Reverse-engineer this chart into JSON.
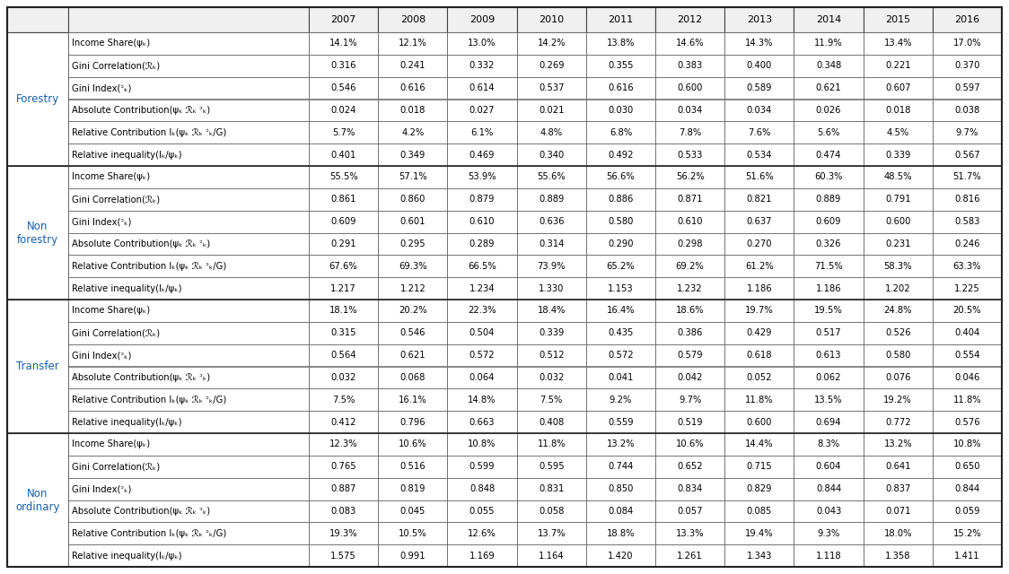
{
  "years": [
    "2007",
    "2008",
    "2009",
    "2010",
    "2011",
    "2012",
    "2013",
    "2014",
    "2015",
    "2016"
  ],
  "sections": [
    {
      "label": "Forestry",
      "rows": [
        {
          "name": "Income Share(ψₖ)",
          "values": [
            "14.1%",
            "12.1%",
            "13.0%",
            "14.2%",
            "13.8%",
            "14.6%",
            "14.3%",
            "11.9%",
            "13.4%",
            "17.0%"
          ]
        },
        {
          "name": "Gini Correlation(ℛₖ)",
          "values": [
            "0.316",
            "0.241",
            "0.332",
            "0.269",
            "0.355",
            "0.383",
            "0.400",
            "0.348",
            "0.221",
            "0.370"
          ]
        },
        {
          "name": "Gini Index(ᵓₖ)",
          "values": [
            "0.546",
            "0.616",
            "0.614",
            "0.537",
            "0.616",
            "0.600",
            "0.589",
            "0.621",
            "0.607",
            "0.597"
          ]
        },
        {
          "name": "Absolute Contribution(ψₖ ℛₖ ᵓₖ)",
          "values": [
            "0.024",
            "0.018",
            "0.027",
            "0.021",
            "0.030",
            "0.034",
            "0.034",
            "0.026",
            "0.018",
            "0.038"
          ]
        },
        {
          "name": "Relative Contribution Iₖ(ψₖ ℛₖ ᵓₖ/G)",
          "values": [
            "5.7%",
            "4.2%",
            "6.1%",
            "4.8%",
            "6.8%",
            "7.8%",
            "7.6%",
            "5.6%",
            "4.5%",
            "9.7%"
          ]
        },
        {
          "name": "Relative inequality(Iₖ/ψₖ)",
          "values": [
            "0.401",
            "0.349",
            "0.469",
            "0.340",
            "0.492",
            "0.533",
            "0.534",
            "0.474",
            "0.339",
            "0.567"
          ]
        }
      ]
    },
    {
      "label": "Non\nforestry",
      "rows": [
        {
          "name": "Income Share(ψₖ)",
          "values": [
            "55.5%",
            "57.1%",
            "53.9%",
            "55.6%",
            "56.6%",
            "56.2%",
            "51.6%",
            "60.3%",
            "48.5%",
            "51.7%"
          ]
        },
        {
          "name": "Gini Correlation(ℛₖ)",
          "values": [
            "0.861",
            "0.860",
            "0.879",
            "0.889",
            "0.886",
            "0.871",
            "0.821",
            "0.889",
            "0.791",
            "0.816"
          ]
        },
        {
          "name": "Gini Index(ᵓₖ)",
          "values": [
            "0.609",
            "0.601",
            "0.610",
            "0.636",
            "0.580",
            "0.610",
            "0.637",
            "0.609",
            "0.600",
            "0.583"
          ]
        },
        {
          "name": "Absolute Contribution(ψₖ ℛₖ ᵓₖ)",
          "values": [
            "0.291",
            "0.295",
            "0.289",
            "0.314",
            "0.290",
            "0.298",
            "0.270",
            "0.326",
            "0.231",
            "0.246"
          ]
        },
        {
          "name": "Relative Contribution Iₖ(ψₖ ℛₖ ᵓₖ/G)",
          "values": [
            "67.6%",
            "69.3%",
            "66.5%",
            "73.9%",
            "65.2%",
            "69.2%",
            "61.2%",
            "71.5%",
            "58.3%",
            "63.3%"
          ]
        },
        {
          "name": "Relative inequality(Iₖ/ψₖ)",
          "values": [
            "1.217",
            "1.212",
            "1.234",
            "1.330",
            "1.153",
            "1.232",
            "1.186",
            "1.186",
            "1.202",
            "1.225"
          ]
        }
      ]
    },
    {
      "label": "Transfer",
      "rows": [
        {
          "name": "Income Share(ψₖ)",
          "values": [
            "18.1%",
            "20.2%",
            "22.3%",
            "18.4%",
            "16.4%",
            "18.6%",
            "19.7%",
            "19.5%",
            "24.8%",
            "20.5%"
          ]
        },
        {
          "name": "Gini Correlation(ℛₖ)",
          "values": [
            "0.315",
            "0.546",
            "0.504",
            "0.339",
            "0.435",
            "0.386",
            "0.429",
            "0.517",
            "0.526",
            "0.404"
          ]
        },
        {
          "name": "Gini Index(ᵓₖ)",
          "values": [
            "0.564",
            "0.621",
            "0.572",
            "0.512",
            "0.572",
            "0.579",
            "0.618",
            "0.613",
            "0.580",
            "0.554"
          ]
        },
        {
          "name": "Absolute Contribution(ψₖ ℛₖ ᵓₖ)",
          "values": [
            "0.032",
            "0.068",
            "0.064",
            "0.032",
            "0.041",
            "0.042",
            "0.052",
            "0.062",
            "0.076",
            "0.046"
          ]
        },
        {
          "name": "Relative Contribution Iₖ(ψₖ ℛₖ ᵓₖ/G)",
          "values": [
            "7.5%",
            "16.1%",
            "14.8%",
            "7.5%",
            "9.2%",
            "9.7%",
            "11.8%",
            "13.5%",
            "19.2%",
            "11.8%"
          ]
        },
        {
          "name": "Relative inequality(Iₖ/ψₖ)",
          "values": [
            "0.412",
            "0.796",
            "0.663",
            "0.408",
            "0.559",
            "0.519",
            "0.600",
            "0.694",
            "0.772",
            "0.576"
          ]
        }
      ]
    },
    {
      "label": "Non\nordinary",
      "rows": [
        {
          "name": "Income Share(ψₖ)",
          "values": [
            "12.3%",
            "10.6%",
            "10.8%",
            "11.8%",
            "13.2%",
            "10.6%",
            "14.4%",
            "8.3%",
            "13.2%",
            "10.8%"
          ]
        },
        {
          "name": "Gini Correlation(ℛₖ)",
          "values": [
            "0.765",
            "0.516",
            "0.599",
            "0.595",
            "0.744",
            "0.652",
            "0.715",
            "0.604",
            "0.641",
            "0.650"
          ]
        },
        {
          "name": "Gini Index(ᵓₖ)",
          "values": [
            "0.887",
            "0.819",
            "0.848",
            "0.831",
            "0.850",
            "0.834",
            "0.829",
            "0.844",
            "0.837",
            "0.844"
          ]
        },
        {
          "name": "Absolute Contribution(ψₖ ℛₖ ᵓₖ)",
          "values": [
            "0.083",
            "0.045",
            "0.055",
            "0.058",
            "0.084",
            "0.057",
            "0.085",
            "0.043",
            "0.071",
            "0.059"
          ]
        },
        {
          "name": "Relative Contribution Iₖ(ψₖ ℛₖ ᵓₖ/G)",
          "values": [
            "19.3%",
            "10.5%",
            "12.6%",
            "13.7%",
            "18.8%",
            "13.3%",
            "19.4%",
            "9.3%",
            "18.0%",
            "15.2%"
          ]
        },
        {
          "name": "Relative inequality(Iₖ/ψₖ)",
          "values": [
            "1.575",
            "0.991",
            "1.169",
            "1.164",
            "1.420",
            "1.261",
            "1.343",
            "1.118",
            "1.358",
            "1.411"
          ]
        }
      ]
    }
  ],
  "row_names_display": [
    "Income Share(ψ_k)",
    "Gini Correlation(R_k)",
    "Gini Index(G_k)",
    "Absolute Contribution(ψ_k R_k G_k)",
    "Relative Contribution I_k(ψ_k R_k G_k/G)",
    "Relative inequality(I_k/ψ_k)"
  ],
  "header_bg": "#e8e8e8",
  "bg_white": "#ffffff",
  "section_text_color": "#1a6bbf",
  "value_text_color": "#8b0000",
  "border_color": "#333333",
  "font_size": 7.2,
  "header_font_size": 8.0,
  "section_font_size": 8.5
}
